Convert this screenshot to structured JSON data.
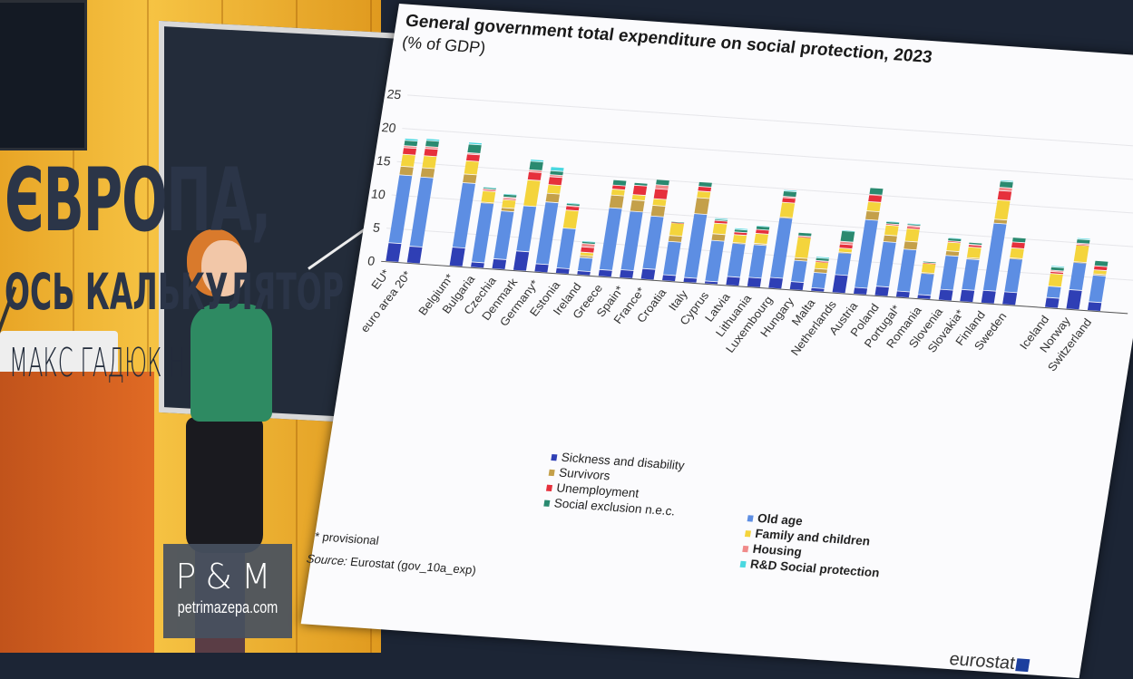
{
  "chart_data": {
    "type": "bar",
    "stacked": true,
    "title": "General government total expenditure on social protection, 2023",
    "subtitle": "(% of GDP)",
    "ylim": [
      0,
      25
    ],
    "yticks": [
      0,
      5,
      10,
      15,
      20,
      25
    ],
    "grid": true,
    "legend_position": "bottom",
    "categories": [
      "EU*",
      "euro area 20*",
      "Belgium*",
      "Bulgaria",
      "Czechia",
      "Denmark",
      "Germany*",
      "Estonia",
      "Ireland",
      "Greece",
      "Spain*",
      "France*",
      "Croatia",
      "Italy",
      "Cyprus",
      "Latvia",
      "Lithuania",
      "Luxembourg",
      "Hungary",
      "Malta",
      "Netherlands",
      "Austria",
      "Poland",
      "Portugal*",
      "Romania",
      "Slovenia",
      "Slovakia*",
      "Finland",
      "Sweden",
      "Iceland",
      "Norway",
      "Switzerland"
    ],
    "gaps_after": [
      "euro area 20*",
      "Sweden"
    ],
    "series": [
      {
        "name": "Sickness and disability",
        "color": "#2f3fb5",
        "values": [
          2.8,
          2.5,
          2.8,
          0.8,
          1.5,
          2.9,
          1.2,
          0.8,
          0.6,
          1.0,
          1.2,
          1.6,
          0.9,
          0.7,
          0.4,
          1.3,
          1.4,
          1.6,
          1.2,
          0.5,
          2.7,
          1.0,
          1.4,
          0.9,
          0.6,
          1.6,
          1.8,
          1.9,
          1.9,
          1.5,
          2.9,
          1.3
        ]
      },
      {
        "name": "Old age",
        "color": "#5d8ee3",
        "values": [
          10.2,
          10.4,
          9.7,
          8.9,
          7.2,
          6.8,
          9.3,
          6.0,
          2.0,
          9.3,
          8.8,
          7.9,
          5.0,
          9.6,
          6.1,
          5.0,
          4.9,
          9.0,
          3.2,
          2.3,
          3.3,
          10.2,
          6.7,
          6.3,
          3.2,
          5.1,
          4.6,
          10.1,
          5.0,
          1.7,
          4.1,
          4.0
        ]
      },
      {
        "name": "Survivors",
        "color": "#c4a04a",
        "values": [
          1.3,
          1.4,
          1.3,
          0.1,
          0.5,
          0,
          1.3,
          0,
          0.3,
          1.9,
          1.7,
          1.6,
          0.9,
          2.4,
          1.0,
          0.1,
          0.2,
          0.1,
          0.4,
          0.6,
          0.1,
          1.3,
          1.0,
          1.2,
          0.1,
          0.7,
          0.2,
          0.6,
          0.1,
          0,
          0.1,
          0.2
        ]
      },
      {
        "name": "Family and children",
        "color": "#f4d43c",
        "values": [
          1.8,
          1.8,
          2.0,
          1.7,
          1.2,
          3.9,
          1.3,
          2.7,
          0.5,
          0.9,
          0.8,
          1.0,
          1.9,
          1.0,
          1.6,
          1.2,
          1.5,
          2.2,
          3.1,
          1.0,
          0.6,
          1.4,
          1.5,
          1.9,
          1.4,
          1.3,
          1.6,
          2.9,
          1.5,
          1.9,
          2.5,
          0.6
        ]
      },
      {
        "name": "Unemployment",
        "color": "#e6303c",
        "values": [
          1.0,
          1.1,
          1.0,
          0.2,
          0.2,
          1.2,
          1.2,
          0.6,
          0.8,
          0.6,
          1.4,
          1.5,
          0.1,
          0.7,
          0.4,
          0.4,
          0.6,
          0.7,
          0.1,
          0.1,
          0.6,
          1.0,
          0.2,
          0.3,
          0.1,
          0.2,
          0.3,
          1.4,
          0.9,
          0.3,
          0.1,
          0.6
        ]
      },
      {
        "name": "Housing",
        "color": "#f08a8a",
        "values": [
          0.3,
          0.3,
          0.2,
          0.1,
          0.2,
          0.3,
          0.3,
          0.1,
          0.5,
          0,
          0,
          0.6,
          0,
          0,
          0,
          0,
          0,
          0.2,
          0.1,
          0.1,
          0.4,
          0.1,
          0,
          0.2,
          0,
          0,
          0.1,
          0.5,
          0,
          0.2,
          0.2,
          0
        ]
      },
      {
        "name": "Social exclusion n.e.c.",
        "color": "#2a8a70",
        "values": [
          0.8,
          0.9,
          1.3,
          0.2,
          0.4,
          1.3,
          0.6,
          0.3,
          0.3,
          0.8,
          0.4,
          0.8,
          0.1,
          0.7,
          0.2,
          0.4,
          0.5,
          0.8,
          0.5,
          0.4,
          1.6,
          1.0,
          0.3,
          0.2,
          0.2,
          0.4,
          0.3,
          0.9,
          0.7,
          0.5,
          0.6,
          0.8
        ]
      },
      {
        "name": "R&D Social protection",
        "color": "#4ad8e0",
        "values": [
          0.3,
          0.3,
          0.3,
          0.1,
          0.1,
          0.3,
          0.6,
          0.1,
          0.1,
          0,
          0,
          0,
          0,
          0,
          0.2,
          0.2,
          0.1,
          0.2,
          0,
          0.2,
          0.1,
          0,
          0.1,
          0.1,
          0,
          0.1,
          0,
          0.2,
          0,
          0.2,
          0.2,
          0
        ]
      }
    ],
    "footnote": "* provisional",
    "source_label": "Source:",
    "source_text": " Eurostat (gov_10a_exp)"
  },
  "brand": "eurostat",
  "logo": {
    "mark": "P&M",
    "url": "petrimazepa.com"
  },
  "headline": {
    "line1": "ЄВРОПА,",
    "line2": "ОСЬ КАЛЬКУЛЯТОР"
  },
  "author": "МАКС ГАДЮКІН"
}
